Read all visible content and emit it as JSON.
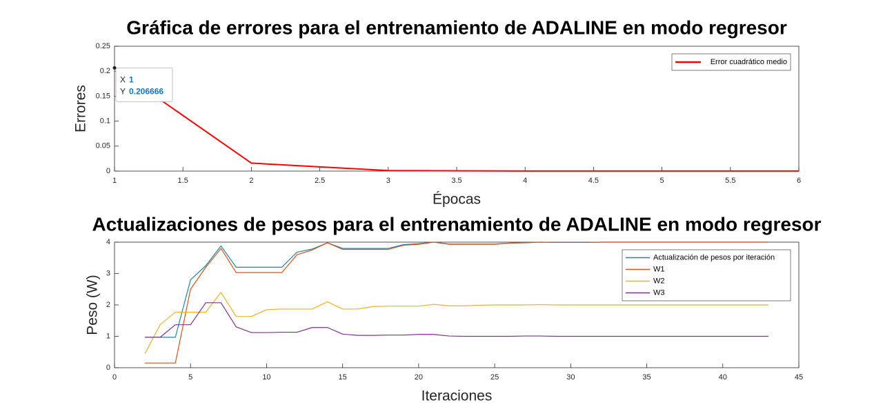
{
  "chart_data": [
    {
      "type": "line",
      "title": "Gráfica de errores para el entrenamiento de ADALINE en modo regresor",
      "xlabel": "Épocas",
      "ylabel": "Errores",
      "x": [
        1,
        2,
        3,
        4,
        5,
        6
      ],
      "series": [
        {
          "name": "Error cuadrático medio",
          "color": "#ff0000",
          "values": [
            0.206666,
            0.016,
            0.001,
            0.0002,
            0.0001,
            0.0001
          ]
        }
      ],
      "xlim": [
        1,
        6
      ],
      "ylim": [
        0,
        0.25
      ],
      "xticks": [
        1,
        1.5,
        2,
        2.5,
        3,
        3.5,
        4,
        4.5,
        5,
        5.5,
        6
      ],
      "yticks": [
        0,
        0.05,
        0.1,
        0.15,
        0.2,
        0.25
      ],
      "legend": "northeast",
      "datatip": {
        "x_name": "X",
        "x": 1,
        "y_name": "Y",
        "y": 0.206666
      }
    },
    {
      "type": "line",
      "title": "Actualizaciones de pesos para el entrenamiento de ADALINE en modo regresor",
      "xlabel": "Iteraciones",
      "ylabel": "Peso (W)",
      "x": [
        2,
        3,
        4,
        5,
        6,
        7,
        8,
        9,
        10,
        11,
        12,
        13,
        14,
        15,
        16,
        17,
        18,
        19,
        20,
        21,
        22,
        23,
        24,
        25,
        26,
        27,
        28,
        29,
        30,
        31,
        32,
        33,
        34,
        35,
        36,
        37,
        38,
        39,
        40,
        41,
        42,
        43
      ],
      "series": [
        {
          "name": "Actualización de pesos por iteración",
          "color": "#1a86a8",
          "values": [
            0.97,
            0.97,
            0.97,
            2.8,
            3.25,
            3.88,
            3.2,
            3.2,
            3.2,
            3.2,
            3.68,
            3.78,
            3.98,
            3.8,
            3.8,
            3.8,
            3.8,
            3.92,
            3.95,
            4.0,
            3.94,
            3.94,
            3.94,
            3.94,
            3.97,
            3.98,
            4.0,
            3.99,
            3.99,
            3.99,
            4.0,
            4.0,
            4.0,
            4.0,
            4.0,
            4.0,
            4.0,
            4.0,
            4.0,
            4.0,
            4.0,
            4.0
          ]
        },
        {
          "name": "W1",
          "color": "#d95319",
          "values": [
            0.15,
            0.15,
            0.15,
            2.5,
            3.2,
            3.8,
            3.03,
            3.03,
            3.03,
            3.03,
            3.6,
            3.75,
            3.98,
            3.77,
            3.77,
            3.77,
            3.77,
            3.9,
            3.93,
            4.0,
            3.93,
            3.93,
            3.93,
            3.93,
            3.97,
            3.98,
            4.0,
            3.99,
            3.99,
            3.99,
            4.0,
            4.0,
            4.0,
            4.0,
            4.0,
            4.0,
            4.0,
            4.0,
            4.0,
            4.0,
            4.0,
            4.0
          ]
        },
        {
          "name": "W2",
          "color": "#edb120",
          "values": [
            0.45,
            1.37,
            1.77,
            1.77,
            1.77,
            2.4,
            1.63,
            1.63,
            1.85,
            1.87,
            1.87,
            1.87,
            2.1,
            1.87,
            1.87,
            1.95,
            1.96,
            1.96,
            1.96,
            2.02,
            1.97,
            1.97,
            1.99,
            2.0,
            2.0,
            2.0,
            2.01,
            2.0,
            2.0,
            2.0,
            2.0,
            2.0,
            2.0,
            2.0,
            2.0,
            2.0,
            2.0,
            2.0,
            2.0,
            2.0,
            2.0,
            2.0
          ]
        },
        {
          "name": "W3",
          "color": "#7e2f8e",
          "values": [
            0.97,
            0.97,
            1.37,
            1.37,
            2.07,
            2.07,
            1.3,
            1.12,
            1.12,
            1.13,
            1.13,
            1.28,
            1.28,
            1.07,
            1.03,
            1.03,
            1.04,
            1.04,
            1.06,
            1.06,
            1.01,
            1.0,
            1.0,
            1.0,
            1.0,
            1.01,
            1.01,
            1.0,
            1.0,
            1.0,
            1.0,
            1.0,
            1.0,
            1.0,
            1.0,
            1.0,
            1.0,
            1.0,
            1.0,
            1.0,
            1.0,
            1.0
          ]
        }
      ],
      "xlim": [
        0,
        45
      ],
      "ylim": [
        0,
        4
      ],
      "xticks": [
        0,
        5,
        10,
        15,
        20,
        25,
        30,
        35,
        40,
        45
      ],
      "yticks": [
        0,
        1,
        2,
        3,
        4
      ],
      "legend": "northeast"
    }
  ]
}
